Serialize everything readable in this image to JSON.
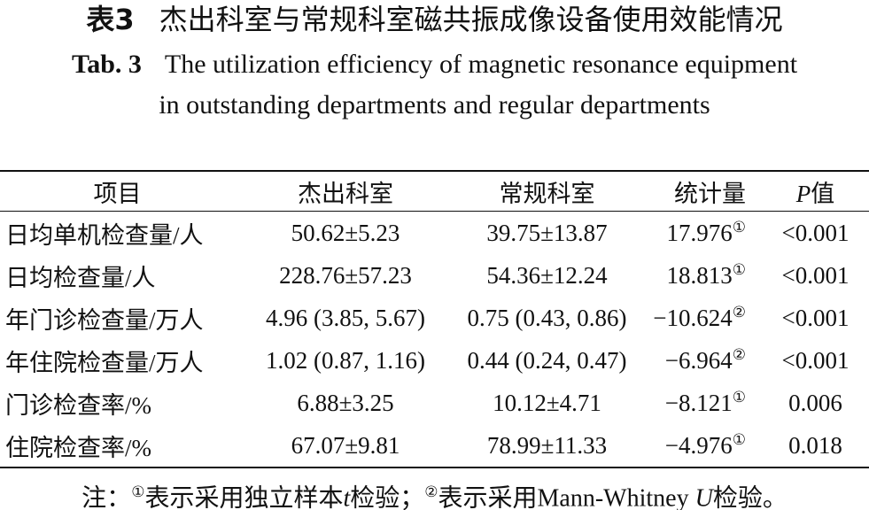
{
  "title": {
    "label": "表3",
    "text": "杰出科室与常规科室磁共振成像设备使用效能情况"
  },
  "subtitle": {
    "label": "Tab. 3",
    "text": "The utilization efficiency of magnetic resonance equipment in outstanding departments and regular departments"
  },
  "table": {
    "header": [
      "项目",
      "杰出科室",
      "常规科室",
      "统计量",
      {
        "italic": "P",
        "text": "值"
      }
    ],
    "rows": [
      [
        "日均单机检查量/人",
        "50.62±5.23",
        "39.75±13.87",
        {
          "value": "17.976",
          "mark": "①"
        },
        "<0.001"
      ],
      [
        "日均检查量/人",
        "228.76±57.23",
        "54.36±12.24",
        {
          "value": "18.813",
          "mark": "①"
        },
        "<0.001"
      ],
      [
        "年门诊检查量/万人",
        "4.96 (3.85, 5.67)",
        "0.75 (0.43, 0.86)",
        {
          "value": "−10.624",
          "mark": "②"
        },
        "<0.001"
      ],
      [
        "年住院检查量/万人",
        "1.02 (0.87, 1.16)",
        "0.44 (0.24, 0.47)",
        {
          "value": "−6.964",
          "mark": "②"
        },
        "<0.001"
      ],
      [
        "门诊检查率/%",
        "6.88±3.25",
        "10.12±4.71",
        {
          "value": "−8.121",
          "mark": "①"
        },
        "0.006"
      ],
      [
        "住院检查率/%",
        "67.07±9.81",
        "78.99±11.33",
        {
          "value": "−4.976",
          "mark": "①"
        },
        "0.018"
      ]
    ]
  },
  "note": {
    "label": "注：",
    "parts": [
      "①",
      "表示采用独立样本",
      "t",
      "检验；",
      "②",
      "表示采用Mann-Whitney ",
      "U",
      "检验。"
    ]
  }
}
